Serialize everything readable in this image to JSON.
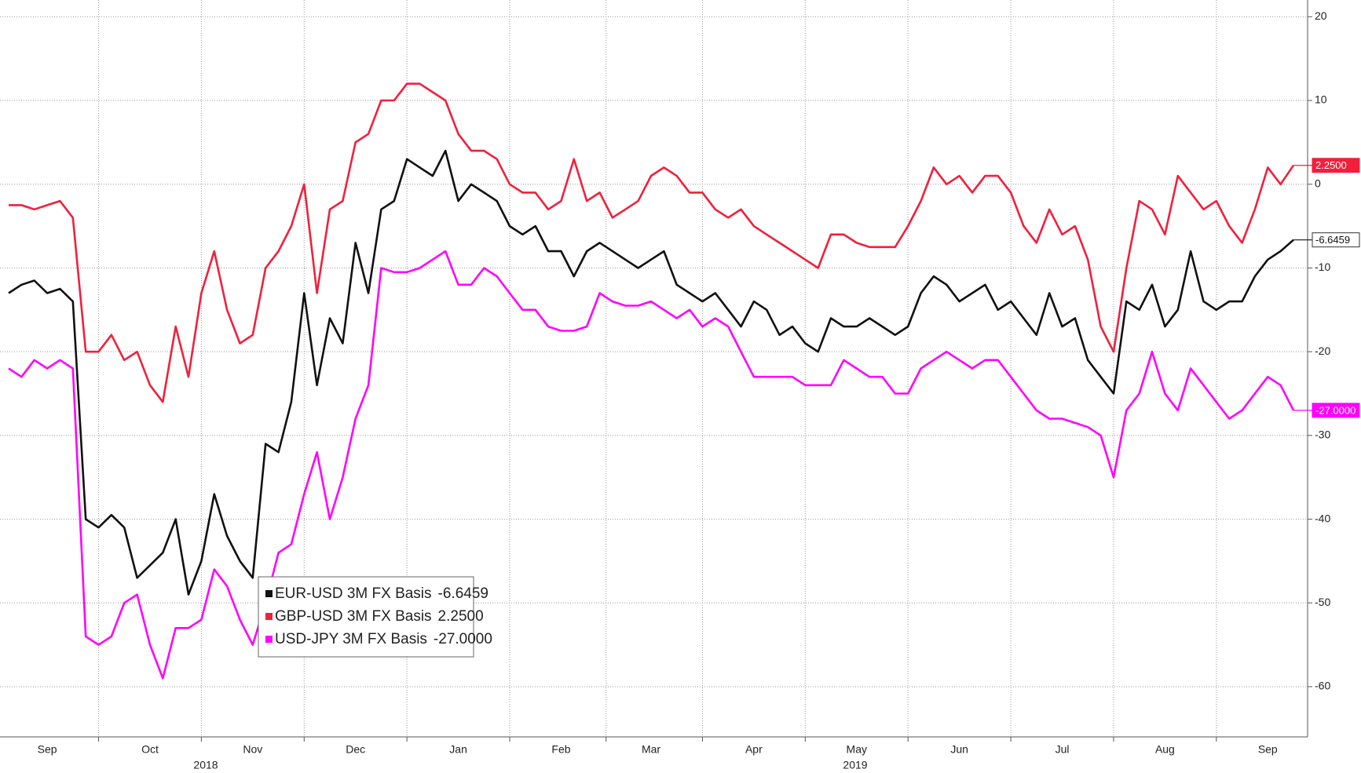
{
  "chart_data": {
    "type": "line",
    "categories": [
      null,
      null,
      null,
      "Sep",
      null,
      null,
      null,
      null,
      null,
      null,
      null,
      "Oct",
      null,
      null,
      null,
      null,
      null,
      null,
      null,
      "Nov",
      null,
      null,
      null,
      null,
      null,
      null,
      null,
      "Dec",
      null,
      null,
      null,
      null,
      null,
      null,
      null,
      "Jan",
      null,
      null,
      null,
      null,
      null,
      null,
      null,
      "Feb",
      null,
      null,
      null,
      null,
      null,
      null,
      "Mar",
      null,
      null,
      null,
      null,
      null,
      null,
      null,
      "Apr",
      null,
      null,
      null,
      null,
      null,
      null,
      null,
      "May",
      null,
      null,
      null,
      null,
      null,
      null,
      null,
      "Jun",
      null,
      null,
      null,
      null,
      null,
      null,
      null,
      "Jul",
      null,
      null,
      null,
      null,
      null,
      null,
      null,
      "Aug",
      null,
      null,
      null,
      null,
      null,
      null,
      null,
      "Sep",
      null,
      null
    ],
    "years": [
      "2018",
      "2019"
    ],
    "series": [
      {
        "name": "EUR-USD 3M FX Basis",
        "last_label": "-6.6459",
        "color": "#111111",
        "values": [
          -13,
          -12,
          -11.5,
          -13,
          -12.5,
          -14,
          -40,
          -41,
          -39.5,
          -41,
          -47,
          -45.5,
          -44,
          -40,
          -49,
          -45,
          -37,
          -42,
          -45,
          -47,
          -31,
          -32,
          -26,
          -13,
          -24,
          -16,
          -19,
          -7,
          -13,
          -3,
          -2,
          3,
          2,
          1,
          4,
          -2,
          0,
          -1,
          -2,
          -5,
          -6,
          -5,
          -8,
          -8,
          -11,
          -8,
          -7,
          -8,
          -9,
          -10,
          -9,
          -8,
          -12,
          -13,
          -14,
          -13,
          -15,
          -17,
          -14,
          -15,
          -18,
          -17,
          -19,
          -20,
          -16,
          -17,
          -17,
          -16,
          -17,
          -18,
          -17,
          -13,
          -11,
          -12,
          -14,
          -13,
          -12,
          -15,
          -14,
          -16,
          -18,
          -13,
          -17,
          -16,
          -21,
          -23,
          -25,
          -14,
          -15,
          -12,
          -17,
          -15,
          -8,
          -14,
          -15,
          -14,
          -14,
          -11,
          -9,
          -8,
          -6.6459
        ]
      },
      {
        "name": "GBP-USD 3M FX Basis",
        "last_label": "2.2500",
        "color": "#f0203c",
        "values": [
          -2.5,
          -2.5,
          -3,
          -2.5,
          -2,
          -4,
          -20,
          -20,
          -18,
          -21,
          -20,
          -24,
          -26,
          -17,
          -23,
          -13,
          -8,
          -15,
          -19,
          -18,
          -10,
          -8,
          -5,
          0,
          -13,
          -3,
          -2,
          5,
          6,
          10,
          10,
          12,
          12,
          11,
          10,
          6,
          4,
          4,
          3,
          0,
          -1,
          -1,
          -3,
          -2,
          3,
          -2,
          -1,
          -4,
          -3,
          -2,
          1,
          2,
          1,
          -1,
          -1,
          -3,
          -4,
          -3,
          -5,
          -6,
          -7,
          -8,
          -9,
          -10,
          -6,
          -6,
          -7,
          -7.5,
          -7.5,
          -7.5,
          -5,
          -2,
          2,
          0,
          1,
          -1,
          1,
          1,
          -1,
          -5,
          -7,
          -3,
          -6,
          -5,
          -9,
          -17,
          -20,
          -10,
          -2,
          -3,
          -6,
          1,
          -1,
          -3,
          -2,
          -5,
          -7,
          -3,
          2,
          0,
          2.25
        ]
      },
      {
        "name": "USD-JPY 3M FX Basis",
        "last_label": "-27.0000",
        "color": "#ff00ff",
        "values": [
          -22,
          -23,
          -21,
          -22,
          -21,
          -22,
          -54,
          -55,
          -54,
          -50,
          -49,
          -55,
          -59,
          -53,
          -53,
          -52,
          -46,
          -48,
          -52,
          -55,
          -50,
          -44,
          -43,
          -37,
          -32,
          -40,
          -35,
          -28,
          -24,
          -10,
          -10.5,
          -10.5,
          -10,
          -9,
          -8,
          -12,
          -12,
          -10,
          -11,
          -13,
          -15,
          -15,
          -17,
          -17.5,
          -17.5,
          -17,
          -13,
          -14,
          -14.5,
          -14.5,
          -14,
          -15,
          -16,
          -15,
          -17,
          -16,
          -17,
          -20,
          -23,
          -23,
          -23,
          -23,
          -24,
          -24,
          -24,
          -21,
          -22,
          -23,
          -23,
          -25,
          -25,
          -22,
          -21,
          -20,
          -21,
          -22,
          -21,
          -21,
          -23,
          -25,
          -27,
          -28,
          -28,
          -28.5,
          -29,
          -30,
          -35,
          -27,
          -25,
          -20,
          -25,
          -27,
          -22,
          -24,
          -26,
          -28,
          -27,
          -25,
          -23,
          -24,
          -27
        ]
      }
    ],
    "ylim": [
      -66,
      22
    ],
    "yticks": [
      20,
      10,
      0,
      -10,
      -20,
      -30,
      -40,
      -50,
      -60
    ],
    "grid": true
  }
}
